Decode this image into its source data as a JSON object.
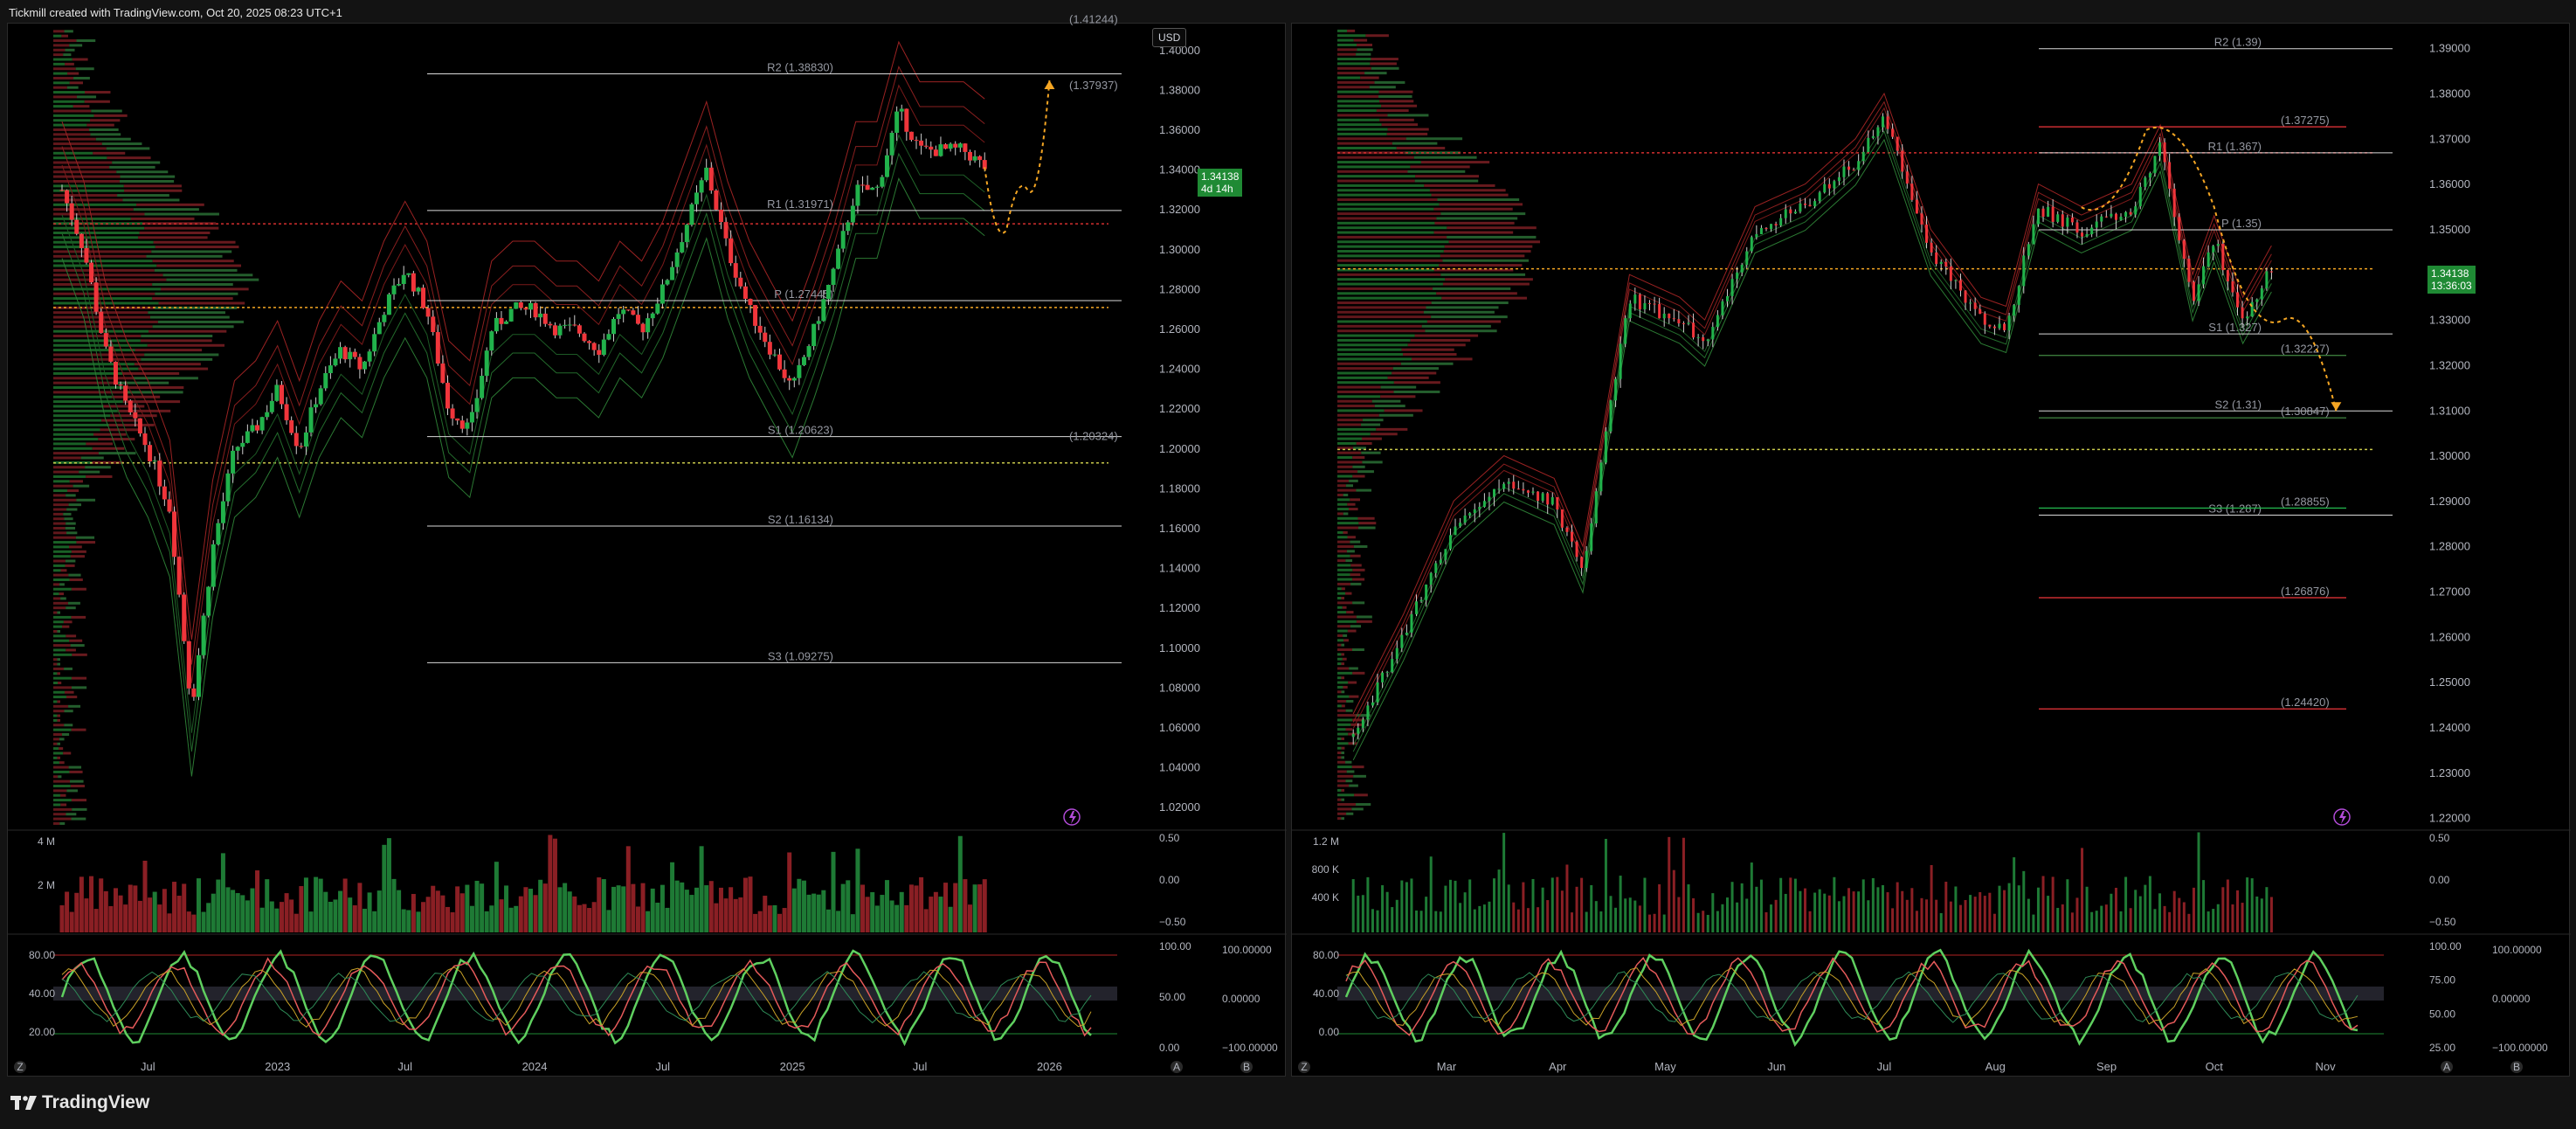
{
  "header": {
    "title": "Tickmill created with TradingView.com, Oct 20, 2025 08:23 UTC+1"
  },
  "footer": {
    "brand": "TradingView"
  },
  "colors": {
    "up": "#21b24b",
    "down": "#f0353b",
    "pivot_line": "#d9d9d9",
    "dotted_orange": "#f5a623",
    "dotted_red": "#d32f2f",
    "current_price_bg": "#1f8a34"
  },
  "chart_data": [
    {
      "type": "candlestick",
      "title": "",
      "currency_button": "USD",
      "current_price": "1.34138",
      "countdown": "4d 14h",
      "y_ticks": [
        "1.40000",
        "1.38000",
        "1.36000",
        "1.34000",
        "1.32000",
        "1.30000",
        "1.28000",
        "1.26000",
        "1.24000",
        "1.22000",
        "1.20000",
        "1.18000",
        "1.16000",
        "1.14000",
        "1.12000",
        "1.10000",
        "1.08000",
        "1.06000",
        "1.04000",
        "1.02000"
      ],
      "ylim": [
        1.01,
        1.41
      ],
      "x_ticks": [
        "Jul",
        "2023",
        "Jul",
        "2024",
        "Jul",
        "2025",
        "Jul",
        "2026"
      ],
      "x_tick_dates": [
        "2022-07",
        "2023-01",
        "2023-07",
        "2024-01",
        "2024-07",
        "2025-01",
        "2025-07",
        "2026-01"
      ],
      "xlim": [
        "2022-03",
        "2026-03"
      ],
      "pivots": [
        {
          "label": "R2 (1.38830)",
          "value": 1.3883
        },
        {
          "label": "R1 (1.31971)",
          "value": 1.31971
        },
        {
          "label": "P (1.27445)",
          "value": 1.27445
        },
        {
          "label": "S1 (1.20623)",
          "value": 1.20623
        },
        {
          "label": "S2 (1.16134)",
          "value": 1.16134
        },
        {
          "label": "S3 (1.09275)",
          "value": 1.09275
        }
      ],
      "labels_right": [
        {
          "label": "(1.37937)",
          "value": 1.37937,
          "color": "#3b7a3b"
        },
        {
          "label": "(1.20324)",
          "value": 1.20324,
          "color": "#f0353b"
        },
        {
          "label": "(1.41244)",
          "value": 1.41244,
          "color": "#555"
        }
      ],
      "close_series": [
        {
          "t": "2022-03",
          "v": 1.33
        },
        {
          "t": "2022-04",
          "v": 1.3
        },
        {
          "t": "2022-05",
          "v": 1.25
        },
        {
          "t": "2022-06",
          "v": 1.22
        },
        {
          "t": "2022-07",
          "v": 1.2
        },
        {
          "t": "2022-08",
          "v": 1.17
        },
        {
          "t": "2022-09",
          "v": 1.07
        },
        {
          "t": "2022-10",
          "v": 1.15
        },
        {
          "t": "2022-11",
          "v": 1.2
        },
        {
          "t": "2022-12",
          "v": 1.21
        },
        {
          "t": "2023-01",
          "v": 1.23
        },
        {
          "t": "2023-02",
          "v": 1.2
        },
        {
          "t": "2023-03",
          "v": 1.23
        },
        {
          "t": "2023-04",
          "v": 1.25
        },
        {
          "t": "2023-05",
          "v": 1.24
        },
        {
          "t": "2023-06",
          "v": 1.27
        },
        {
          "t": "2023-07",
          "v": 1.29
        },
        {
          "t": "2023-08",
          "v": 1.27
        },
        {
          "t": "2023-09",
          "v": 1.22
        },
        {
          "t": "2023-10",
          "v": 1.21
        },
        {
          "t": "2023-11",
          "v": 1.26
        },
        {
          "t": "2023-12",
          "v": 1.27
        },
        {
          "t": "2024-01",
          "v": 1.27
        },
        {
          "t": "2024-02",
          "v": 1.26
        },
        {
          "t": "2024-03",
          "v": 1.26
        },
        {
          "t": "2024-04",
          "v": 1.25
        },
        {
          "t": "2024-05",
          "v": 1.27
        },
        {
          "t": "2024-06",
          "v": 1.26
        },
        {
          "t": "2024-07",
          "v": 1.28
        },
        {
          "t": "2024-08",
          "v": 1.31
        },
        {
          "t": "2024-09",
          "v": 1.34
        },
        {
          "t": "2024-10",
          "v": 1.3
        },
        {
          "t": "2024-11",
          "v": 1.27
        },
        {
          "t": "2024-12",
          "v": 1.25
        },
        {
          "t": "2025-01",
          "v": 1.23
        },
        {
          "t": "2025-02",
          "v": 1.26
        },
        {
          "t": "2025-03",
          "v": 1.29
        },
        {
          "t": "2025-04",
          "v": 1.33
        },
        {
          "t": "2025-05",
          "v": 1.33
        },
        {
          "t": "2025-06",
          "v": 1.37
        },
        {
          "t": "2025-07",
          "v": 1.35
        },
        {
          "t": "2025-08",
          "v": 1.35
        },
        {
          "t": "2025-09",
          "v": 1.35
        },
        {
          "t": "2025-10",
          "v": 1.3414
        }
      ],
      "projection": [
        {
          "t": "2025-10",
          "v": 1.3414
        },
        {
          "t": "2025-11",
          "v": 1.31
        },
        {
          "t": "2025-12",
          "v": 1.33
        },
        {
          "t": "2026-01",
          "v": 1.385
        }
      ],
      "volume_ticks": [
        "4 M",
        "2 M"
      ],
      "volume_right_ticks": [
        "0.50",
        "0.00",
        "−0.50"
      ],
      "osc_ticks": [
        "80.00",
        "40.00",
        "20.00"
      ],
      "osc_right_ticks": [
        "100.00",
        "50.00",
        "0.00"
      ],
      "osc_far_right_ticks": [
        "100.00000",
        "0.00000",
        "−100.00000"
      ]
    },
    {
      "type": "candlestick",
      "title": "",
      "current_price": "1.34138",
      "countdown": "13:36:03",
      "y_ticks": [
        "1.39000",
        "1.38000",
        "1.37000",
        "1.36000",
        "1.35000",
        "1.34000",
        "1.33000",
        "1.32000",
        "1.31000",
        "1.30000",
        "1.29000",
        "1.28000",
        "1.27000",
        "1.26000",
        "1.25000",
        "1.24000",
        "1.23000",
        "1.22000"
      ],
      "ylim": [
        1.218,
        1.394
      ],
      "x_ticks": [
        "Mar",
        "Apr",
        "May",
        "Jun",
        "Jul",
        "Aug",
        "Sep",
        "Oct",
        "Nov"
      ],
      "x_tick_dates": [
        "2025-03-01",
        "2025-04-01",
        "2025-05-01",
        "2025-06-01",
        "2025-07-01",
        "2025-08-01",
        "2025-09-01",
        "2025-10-01",
        "2025-11-01"
      ],
      "xlim": [
        "2025-02-01",
        "2025-11-10"
      ],
      "pivots": [
        {
          "label": "R2 (1.39)",
          "value": 1.39
        },
        {
          "label": "R1 (1.367)",
          "value": 1.367
        },
        {
          "label": "P (1.35)",
          "value": 1.35
        },
        {
          "label": "S1 (1.327)",
          "value": 1.327
        },
        {
          "label": "S2 (1.31)",
          "value": 1.31
        },
        {
          "label": "S3 (1.287)",
          "value": 1.287
        }
      ],
      "labels_right": [
        {
          "label": "(1.37275)",
          "value": 1.37275,
          "color": "#f0353b"
        },
        {
          "label": "(1.32227)",
          "value": 1.32227,
          "color": "#3b7a3b"
        },
        {
          "label": "(1.30847)",
          "value": 1.30847,
          "color": "#3b7a3b"
        },
        {
          "label": "(1.28855)",
          "value": 1.28855,
          "color": "#21b24b"
        },
        {
          "label": "(1.26876)",
          "value": 1.26876,
          "color": "#f0353b"
        },
        {
          "label": "(1.24420)",
          "value": 1.2442,
          "color": "#f0353b"
        }
      ],
      "close_series": [
        {
          "t": "2025-02-03",
          "v": 1.238
        },
        {
          "t": "2025-02-17",
          "v": 1.26
        },
        {
          "t": "2025-03-03",
          "v": 1.285
        },
        {
          "t": "2025-03-17",
          "v": 1.295
        },
        {
          "t": "2025-03-31",
          "v": 1.29
        },
        {
          "t": "2025-04-08",
          "v": 1.275
        },
        {
          "t": "2025-04-21",
          "v": 1.335
        },
        {
          "t": "2025-05-05",
          "v": 1.33
        },
        {
          "t": "2025-05-12",
          "v": 1.325
        },
        {
          "t": "2025-05-26",
          "v": 1.35
        },
        {
          "t": "2025-06-09",
          "v": 1.355
        },
        {
          "t": "2025-06-23",
          "v": 1.365
        },
        {
          "t": "2025-07-01",
          "v": 1.375
        },
        {
          "t": "2025-07-14",
          "v": 1.345
        },
        {
          "t": "2025-07-28",
          "v": 1.33
        },
        {
          "t": "2025-08-04",
          "v": 1.328
        },
        {
          "t": "2025-08-13",
          "v": 1.355
        },
        {
          "t": "2025-08-25",
          "v": 1.35
        },
        {
          "t": "2025-09-08",
          "v": 1.355
        },
        {
          "t": "2025-09-16",
          "v": 1.368
        },
        {
          "t": "2025-09-25",
          "v": 1.335
        },
        {
          "t": "2025-10-01",
          "v": 1.348
        },
        {
          "t": "2025-10-09",
          "v": 1.33
        },
        {
          "t": "2025-10-17",
          "v": 1.3414
        }
      ],
      "projection": [
        {
          "t": "2025-08-25",
          "v": 1.355
        },
        {
          "t": "2025-09-12",
          "v": 1.372
        },
        {
          "t": "2025-10-01",
          "v": 1.355
        },
        {
          "t": "2025-10-20",
          "v": 1.33
        },
        {
          "t": "2025-11-04",
          "v": 1.31
        }
      ],
      "volume_ticks": [
        "1.2 M",
        "800 K",
        "400 K"
      ],
      "volume_right_ticks": [
        "0.50",
        "0.00",
        "−0.50"
      ],
      "osc_ticks": [
        "80.00",
        "40.00",
        "0.00"
      ],
      "osc_right_ticks": [
        "100.00",
        "75.00",
        "50.00",
        "25.00"
      ],
      "osc_far_right_ticks": [
        "100.00000",
        "0.00000",
        "−100.00000"
      ]
    }
  ]
}
